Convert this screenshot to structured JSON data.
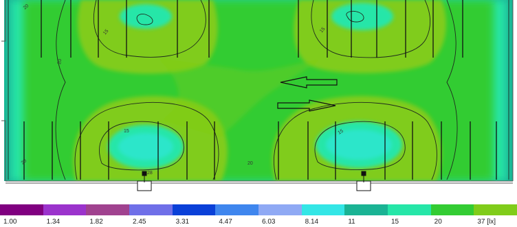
{
  "legend": {
    "colors": [
      "#800080",
      "#9b33cc",
      "#a0428f",
      "#6f6fe8",
      "#0a40d8",
      "#3f86ee",
      "#8fa9f4",
      "#33e6e6",
      "#1ab394",
      "#26e6a8",
      "#33cc33",
      "#80cc1a"
    ],
    "ticks": [
      "1.00",
      "1.34",
      "1.82",
      "2.45",
      "3.31",
      "4.47",
      "6.03",
      "8.14",
      "11",
      "15",
      "20",
      "37 [lx]"
    ]
  },
  "contour_labels": {
    "top_left_upper": "15",
    "top_left_side": "20",
    "top_right_upper": "15",
    "left_edge": "20",
    "bottom_left": "15",
    "bottom_right": "15",
    "bottom_center": "20",
    "bottom_marker": "28",
    "left_corner": "20"
  }
}
